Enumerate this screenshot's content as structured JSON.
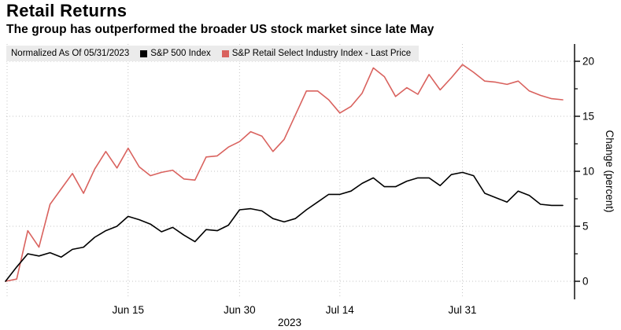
{
  "title": "Retail Returns",
  "subtitle": "The group has outperformed the broader US stock market since late May",
  "legend": {
    "note": "Normalized As Of 05/31/2023",
    "series": [
      {
        "label": "S&P 500 Index",
        "color": "#000000"
      },
      {
        "label": "S&P Retail Select Industry Index - Last Price",
        "color": "#d9625e"
      }
    ]
  },
  "chart_data": {
    "type": "line",
    "title": "Retail Returns",
    "xlabel": "2023",
    "ylabel": "Change (percent)",
    "yticks": [
      0,
      5,
      10,
      15,
      20
    ],
    "y_minor_ticks": [
      2.5,
      7.5,
      12.5,
      17.5
    ],
    "ylim": [
      -1.6,
      21.6
    ],
    "grid": "dotted",
    "legend_position": "top",
    "x_tick_labels": [
      {
        "label": "Jun 15",
        "index": 11
      },
      {
        "label": "Jun 30",
        "index": 21
      },
      {
        "label": "Jul 14",
        "index": 30
      },
      {
        "label": "Jul 31",
        "index": 41
      }
    ],
    "dates": [
      "05/31",
      "06/01",
      "06/02",
      "06/05",
      "06/06",
      "06/07",
      "06/08",
      "06/09",
      "06/12",
      "06/13",
      "06/14",
      "06/15",
      "06/16",
      "06/20",
      "06/21",
      "06/22",
      "06/23",
      "06/26",
      "06/27",
      "06/28",
      "06/29",
      "06/30",
      "07/03",
      "07/05",
      "07/06",
      "07/07",
      "07/10",
      "07/11",
      "07/12",
      "07/13",
      "07/14",
      "07/17",
      "07/18",
      "07/19",
      "07/20",
      "07/21",
      "07/24",
      "07/25",
      "07/26",
      "07/27",
      "07/28",
      "07/31",
      "08/01",
      "08/02",
      "08/03",
      "08/04",
      "08/07",
      "08/08",
      "08/09",
      "08/10",
      "08/11"
    ],
    "series": [
      {
        "name": "S&P 500 Index",
        "color": "#000000",
        "values": [
          0.0,
          1.3,
          2.5,
          2.3,
          2.6,
          2.2,
          2.9,
          3.1,
          4.0,
          4.6,
          5.0,
          5.9,
          5.6,
          5.2,
          4.5,
          4.9,
          4.2,
          3.6,
          4.7,
          4.6,
          5.1,
          6.5,
          6.6,
          6.4,
          5.7,
          5.4,
          5.7,
          6.5,
          7.2,
          7.9,
          7.9,
          8.2,
          8.9,
          9.4,
          8.6,
          8.6,
          9.1,
          9.4,
          9.4,
          8.7,
          9.7,
          9.9,
          9.6,
          8.0,
          7.6,
          7.2,
          8.2,
          7.8,
          7.0,
          6.9,
          6.9
        ]
      },
      {
        "name": "S&P Retail Select Industry Index - Last Price",
        "color": "#d9625e",
        "values": [
          0.0,
          0.2,
          4.6,
          3.1,
          7.0,
          8.4,
          9.8,
          8.0,
          10.2,
          11.8,
          10.3,
          12.1,
          10.4,
          9.6,
          9.9,
          10.1,
          9.3,
          9.2,
          11.3,
          11.4,
          12.2,
          12.7,
          13.6,
          13.2,
          11.8,
          12.9,
          15.1,
          17.3,
          17.3,
          16.5,
          15.3,
          15.9,
          17.1,
          19.4,
          18.6,
          16.8,
          17.6,
          17.0,
          18.8,
          17.4,
          18.5,
          19.7,
          19.0,
          18.2,
          18.1,
          17.9,
          18.2,
          17.3,
          16.9,
          16.6,
          16.5
        ]
      }
    ]
  }
}
